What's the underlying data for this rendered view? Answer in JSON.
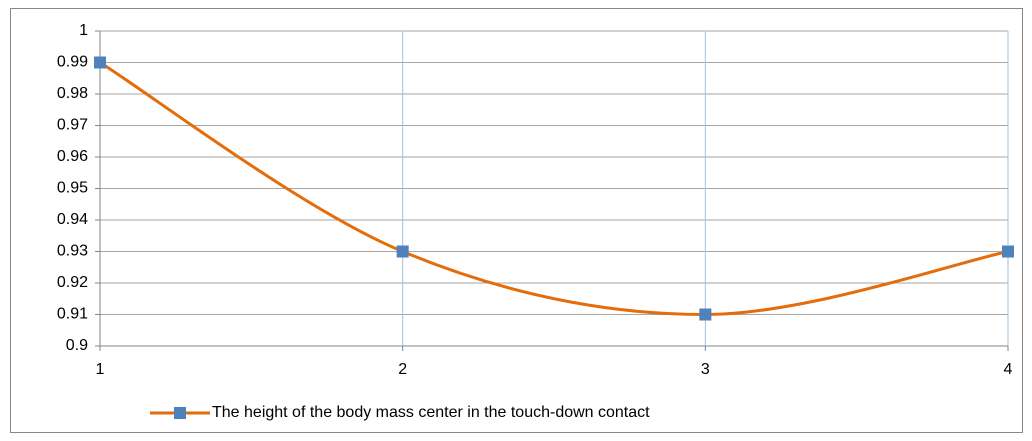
{
  "chart_data": {
    "type": "line",
    "x": [
      1,
      2,
      3,
      4
    ],
    "series": [
      {
        "name": "The height of the body mass center in the touch-down contact",
        "color": "#e46c0a",
        "marker_color": "#4f81bd",
        "values": [
          0.99,
          0.93,
          0.91,
          0.93
        ]
      }
    ],
    "xlim": [
      1,
      4
    ],
    "xticks": [
      1,
      2,
      3,
      4
    ],
    "ylim": [
      0.9,
      1
    ],
    "yticks": [
      0.9,
      0.91,
      0.92,
      0.93,
      0.94,
      0.95,
      0.96,
      0.97,
      0.98,
      0.99,
      1
    ],
    "grid": true,
    "smooth": true,
    "legend": "bottom"
  }
}
